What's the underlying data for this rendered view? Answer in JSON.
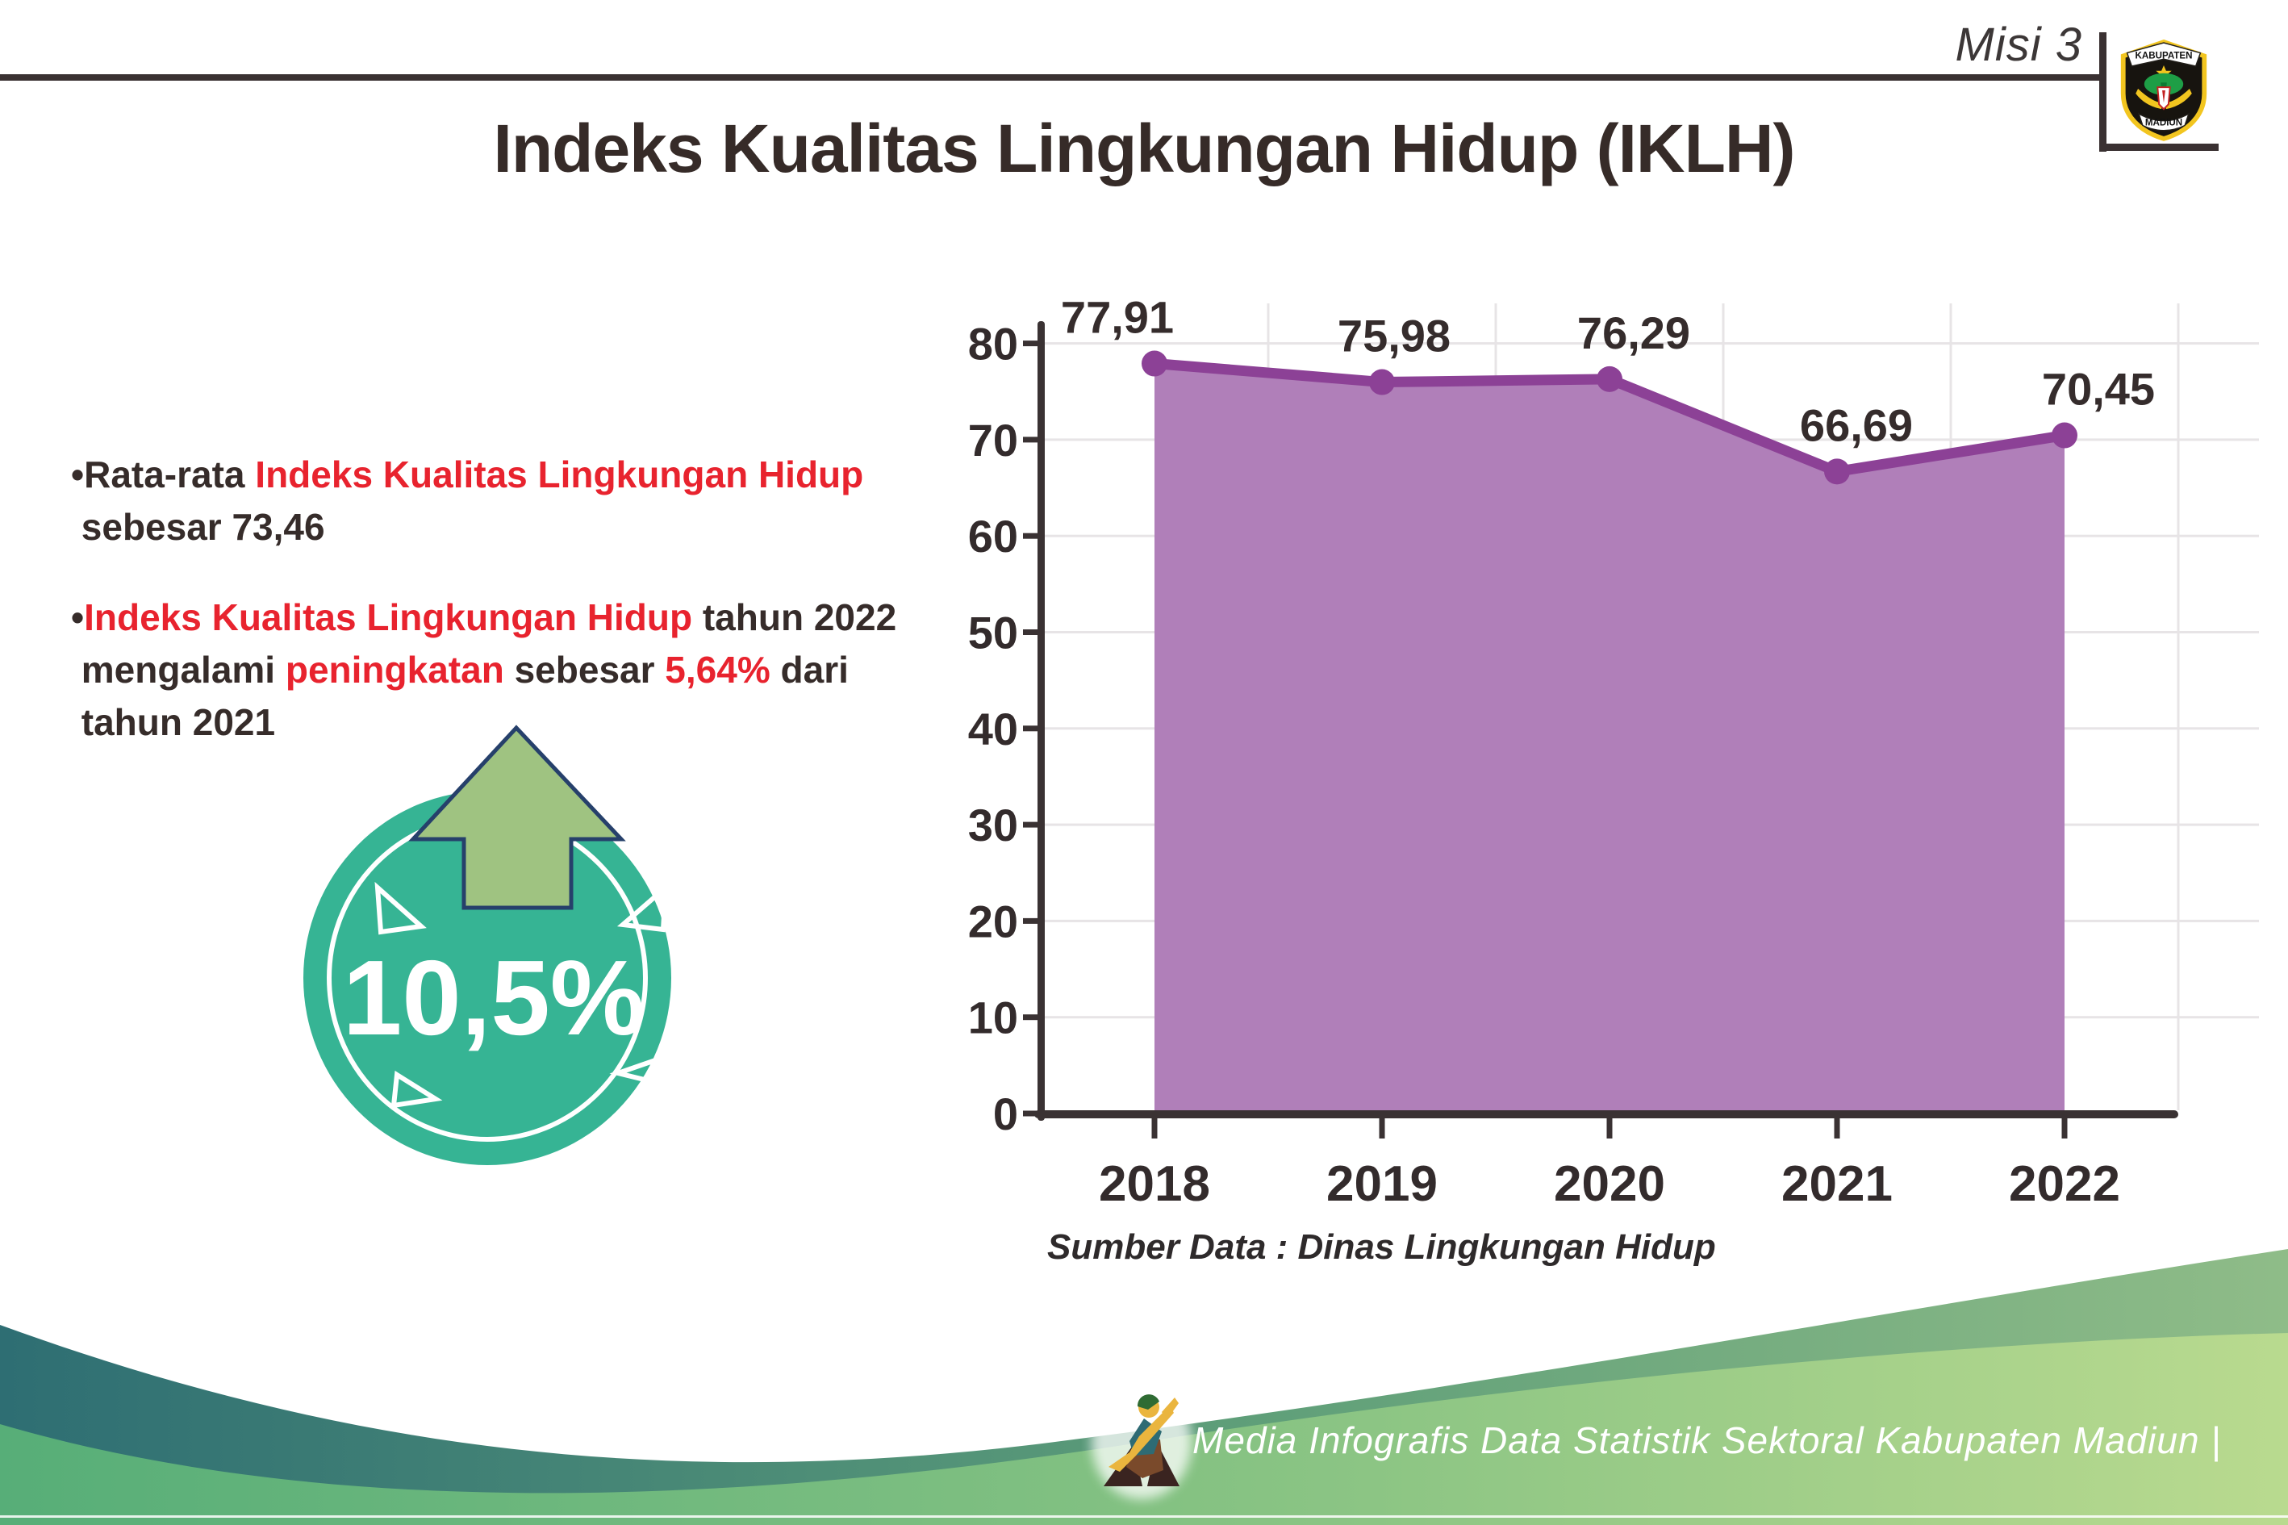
{
  "header": {
    "misi": "Misi 3",
    "title": "Indeks Kualitas Lingkungan Hidup (IKLH)",
    "logo": {
      "top": "KABUPATEN",
      "bottom": "MADIUN"
    }
  },
  "bullets": [
    {
      "segments": [
        {
          "t": "•Rata-rata ",
          "c": "dark"
        },
        {
          "t": "Indeks Kualitas Lingkungan Hidup",
          "c": "red"
        },
        {
          "t": "\n sebesar 73,46",
          "c": "dark"
        }
      ]
    },
    {
      "segments": [
        {
          "t": "•",
          "c": "dark"
        },
        {
          "t": "Indeks Kualitas Lingkungan Hidup",
          "c": "red"
        },
        {
          "t": " tahun 2022\n mengalami ",
          "c": "dark"
        },
        {
          "t": "peningkatan",
          "c": "red"
        },
        {
          "t": " sebesar ",
          "c": "dark"
        },
        {
          "t": "5,64%",
          "c": "red"
        },
        {
          "t": " dari\n tahun 2021",
          "c": "dark"
        }
      ]
    }
  ],
  "badge": {
    "value": "10,5%",
    "direction": "up-arrow"
  },
  "chart_data": {
    "type": "area",
    "title": "",
    "categories": [
      "2018",
      "2019",
      "2020",
      "2021",
      "2022"
    ],
    "values": [
      77.91,
      75.98,
      76.29,
      66.69,
      70.45
    ],
    "value_labels": [
      "77,91",
      "75,98",
      "76,29",
      "66,69",
      "70,45"
    ],
    "series_name": "IKLH",
    "xlabel": "",
    "ylabel": "",
    "ylim": [
      0,
      80
    ],
    "ytick_step": 10,
    "grid": true,
    "legend": false,
    "source": "Sumber Data : Dinas Lingkungan Hidup"
  },
  "footer": {
    "text": "Media Infografis Data Statistik Sektoral Kabupaten Madiun |"
  },
  "colors": {
    "accent_red": "#e8232e",
    "text_dark": "#362c2a",
    "title_dark": "#362b28",
    "axis": "#3a3233",
    "gridline": "#e7e4e6",
    "area_fill": "#b07fb9",
    "line": "#8c4196",
    "marker": "#8c4196",
    "badge_teal": "#36b494",
    "arrow_green": "#9fc381",
    "arrow_outline": "#26406b",
    "band_teal_start": "#2e6e73",
    "band_teal_end": "#8fbc88",
    "dome_green_start": "#57ae78",
    "dome_green_end": "#b9da8f",
    "logo_gold": "#f2c51f"
  }
}
